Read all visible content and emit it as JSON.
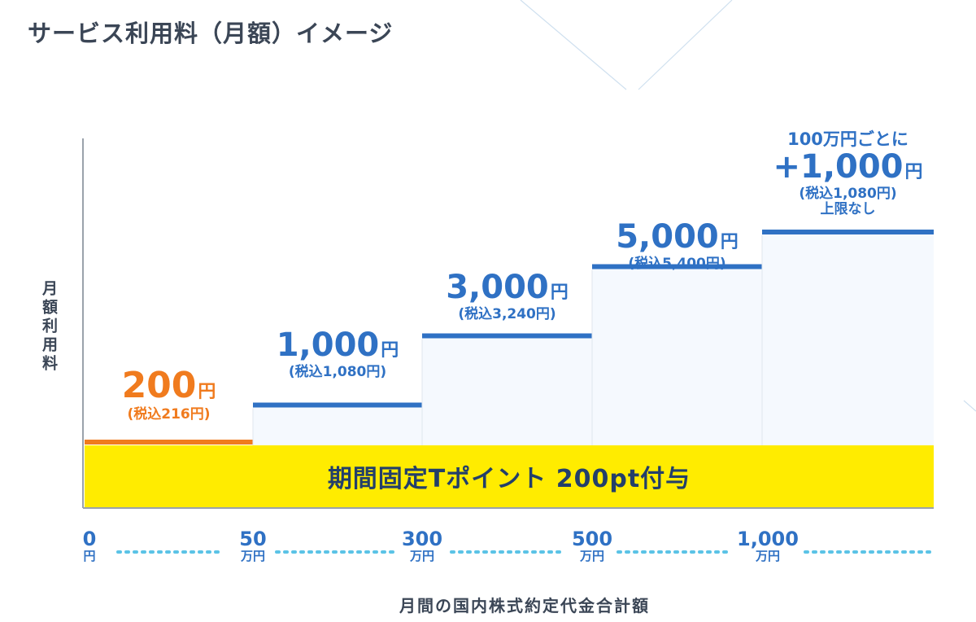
{
  "title": "サービス利用料（月額）イメージ",
  "chart_data": {
    "type": "area",
    "title": "サービス利用料（月額）イメージ",
    "ylabel": "月額利用料",
    "xlabel": "月間の国内株式約定代金合計額",
    "x_ticks": [
      {
        "value": "0",
        "unit": "円"
      },
      {
        "value": "50",
        "unit": "万円"
      },
      {
        "value": "300",
        "unit": "万円"
      },
      {
        "value": "500",
        "unit": "万円"
      },
      {
        "value": "1,000",
        "unit": "万円"
      }
    ],
    "tiers": [
      {
        "x_from": 0,
        "x_to": 50,
        "fee": 200,
        "fee_label": "200",
        "unit": "円",
        "tax_label": "(税込216円)",
        "color": "#f07b1e"
      },
      {
        "x_from": 50,
        "x_to": 300,
        "fee": 1000,
        "fee_label": "1,000",
        "unit": "円",
        "tax_label": "(税込1,080円)",
        "color": "#2f71c4"
      },
      {
        "x_from": 300,
        "x_to": 500,
        "fee": 3000,
        "fee_label": "3,000",
        "unit": "円",
        "tax_label": "(税込3,240円)",
        "color": "#2f71c4"
      },
      {
        "x_from": 500,
        "x_to": 1000,
        "fee": 5000,
        "fee_label": "5,000",
        "unit": "円",
        "tax_label": "(税込5,400円)",
        "color": "#2f71c4"
      },
      {
        "x_from": 1000,
        "x_to": null,
        "fee": 6000,
        "prefix": "100万円ごとに",
        "fee_label": "+1,000",
        "unit": "円",
        "tax_label": "(税込1,080円)",
        "suffix": "上限なし",
        "color": "#2f71c4"
      }
    ],
    "banner": "期間固定Tポイント 200pt付与",
    "colors": {
      "accent": "#2f71c4",
      "first_tier": "#f07b1e",
      "banner": "#ffec00",
      "area_fill": "#f5f9fe",
      "text": "#3b4656"
    }
  }
}
